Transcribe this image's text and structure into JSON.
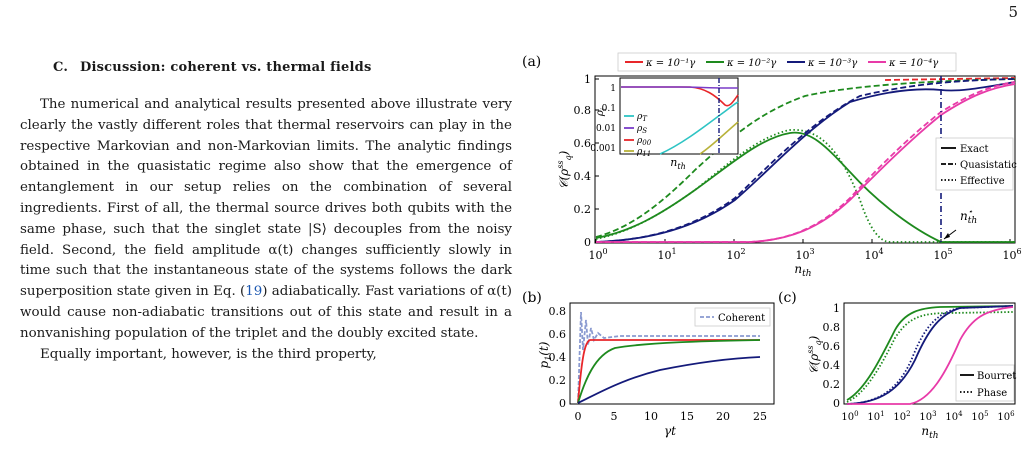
{
  "page": {
    "number": "5"
  },
  "section": {
    "label": "C.",
    "title": "Discussion: coherent vs. thermal fields"
  },
  "text": {
    "p1_a": "The numerical and analytical results presented above illustrate very clearly the vastly different roles that thermal reservoirs can play in the respective Markovian and non-Markovian limits. The analytic findings obtained in the quasistatic regime also show that the emergence of entanglement in our setup relies on the combination of several ingredients. First of all, the thermal source drives both qubits with the same phase, such that the singlet state |S⟩ decouples from the noisy field. Second, the field amplitude α(t) changes sufficiently slowly in time such that the instantaneous state of the systems follows the dark superposition state given in Eq. (",
    "p1_ref": "19",
    "p1_b": ") adiabatically. Fast variations of α(t) would cause non-adiabatic transitions out of this state and result in a nonvanishing population of the triplet and the doubly excited state.",
    "p2": "Equally important, however, is the third property,"
  },
  "figure": {
    "panel_a": {
      "label": "(a)",
      "ylabel": "C(ρq^ss)",
      "xlabel": "n_th",
      "yticks": [
        "0",
        "0.2",
        "0.4",
        "0.6",
        "0.8",
        "1"
      ],
      "xticks": [
        "10^0",
        "10^1",
        "10^2",
        "10^3",
        "10^4",
        "10^5",
        "10^6"
      ],
      "legend_top": [
        {
          "label": "κ = 10⁻¹γ",
          "color": "#e8262a"
        },
        {
          "label": "κ = 10⁻²γ",
          "color": "#1e8a1e"
        },
        {
          "label": "κ = 10⁻³γ",
          "color": "#141a7a"
        },
        {
          "label": "κ = 10⁻⁴γ",
          "color": "#e83aa8"
        }
      ],
      "legend_style": [
        "Exact",
        "Quasistatic",
        "Effective"
      ],
      "annotation": "n*th",
      "inset": {
        "ylabel": "ρ_i",
        "xlabel": "n_th",
        "yticks": [
          "1",
          "0.1",
          "0.01",
          "0.001"
        ],
        "legend": [
          {
            "label": "ρT",
            "color": "#2ec4c4"
          },
          {
            "label": "ρS",
            "color": "#7a3cc8"
          },
          {
            "label": "ρ00",
            "color": "#e8262a"
          },
          {
            "label": "ρ11",
            "color": "#b8b23a"
          }
        ]
      }
    },
    "panel_b": {
      "label": "(b)",
      "ylabel": "p1(t)",
      "xlabel": "γt",
      "yticks": [
        "0",
        "0.2",
        "0.4",
        "0.6",
        "0.8"
      ],
      "xticks": [
        "0",
        "5",
        "10",
        "15",
        "20",
        "25"
      ],
      "legend": "Coherent"
    },
    "panel_c": {
      "label": "(c)",
      "ylabel": "C(ρq^ss)",
      "xlabel": "n_th",
      "yticks": [
        "0",
        "0.2",
        "0.4",
        "0.6",
        "0.8",
        "1"
      ],
      "xticks": [
        "10^0",
        "10^1",
        "10^2",
        "10^3",
        "10^4",
        "10^5",
        "10^6"
      ],
      "legend": [
        "Bourret",
        "Phase"
      ]
    }
  }
}
